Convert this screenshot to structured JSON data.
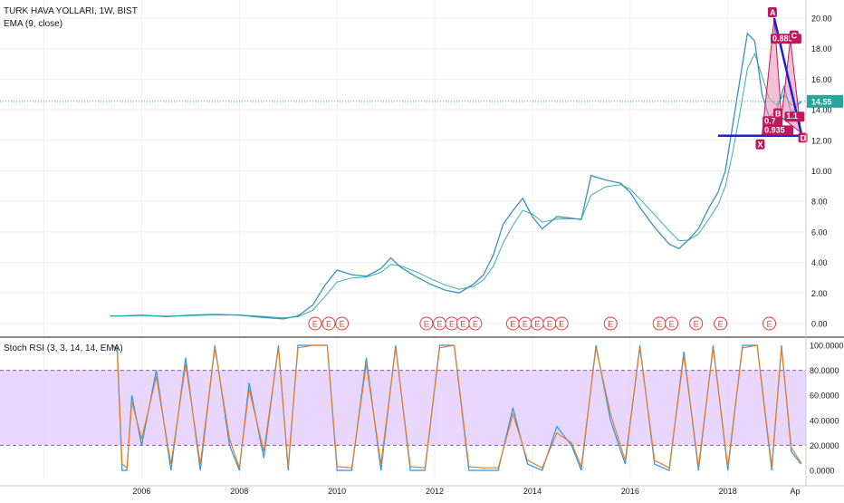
{
  "header": {
    "symbol_line": "TURK HAVA YOLLARI, 1W, BIST",
    "ema_line": "EMA (9, close)",
    "stoch_line": "Stoch RSI (3, 3, 14, 14, EMA)"
  },
  "colors": {
    "price": "#3a8fc7",
    "ema": "#26a69a",
    "stoch_k": "#2196f3",
    "stoch_d": "#e87d22",
    "band": "#e0c4fb",
    "pattern_fill": "#e88fb0",
    "pattern_label": "#c2185b",
    "trendline": "#1e1ed8",
    "price_badge": "#26a69a"
  },
  "price_axis": {
    "ticks": [
      "20.00",
      "18.00",
      "16.00",
      "14.00",
      "12.00",
      "10.00",
      "8.00",
      "6.00",
      "4.00",
      "2.00",
      "0.00"
    ],
    "last_price": "14.55"
  },
  "rsi_axis": {
    "ticks": [
      "100.0000",
      "80.0000",
      "60.0000",
      "40.0000",
      "20.0000",
      "0.0000"
    ]
  },
  "time_axis": {
    "ticks": [
      "2006",
      "2008",
      "2010",
      "2012",
      "2014",
      "2016",
      "2018",
      "Ap"
    ]
  },
  "earnings_marker_label": "E",
  "earnings_markers_years": [
    2009.55,
    2009.83,
    2010.1,
    2011.83,
    2012.1,
    2012.35,
    2012.58,
    2012.83,
    2013.6,
    2013.85,
    2014.1,
    2014.35,
    2014.6,
    2015.6,
    2016.6,
    2016.85,
    2017.35,
    2017.85,
    2018.85
  ],
  "harmonic_pattern": {
    "points": [
      "X",
      "A",
      "B",
      "C",
      "D"
    ],
    "ratios": [
      "0.885",
      "0.7",
      "0.935",
      "1.1"
    ],
    "point_values": {
      "X": {
        "t": 2018.7,
        "price": 12.3
      },
      "A": {
        "t": 2018.95,
        "price": 20.0
      },
      "B": {
        "t": 2019.1,
        "price": 13.5
      },
      "C": {
        "t": 2019.28,
        "price": 18.6
      },
      "D": {
        "t": 2019.5,
        "price": 12.5
      }
    }
  },
  "chart_data": [
    {
      "type": "line",
      "title": "TURK HAVA YOLLARI, 1W, BIST",
      "series": [
        {
          "name": "TURK HAVA YOLLARI",
          "x": [
            2005.35,
            2005.6,
            2006.0,
            2006.5,
            2007.0,
            2007.5,
            2008.0,
            2008.5,
            2008.9,
            2009.2,
            2009.5,
            2009.75,
            2010.0,
            2010.3,
            2010.6,
            2010.9,
            2011.1,
            2011.3,
            2011.6,
            2011.9,
            2012.2,
            2012.5,
            2012.8,
            2013.0,
            2013.2,
            2013.4,
            2013.6,
            2013.8,
            2014.0,
            2014.2,
            2014.5,
            2014.8,
            2015.0,
            2015.2,
            2015.5,
            2015.8,
            2016.0,
            2016.2,
            2016.5,
            2016.8,
            2017.0,
            2017.2,
            2017.4,
            2017.6,
            2017.8,
            2017.95,
            2018.1,
            2018.25,
            2018.4,
            2018.55,
            2018.7,
            2018.85,
            2019.0,
            2019.15,
            2019.3,
            2019.5
          ],
          "values": [
            0.5,
            0.5,
            0.55,
            0.45,
            0.55,
            0.6,
            0.55,
            0.4,
            0.3,
            0.5,
            1.2,
            2.5,
            3.5,
            3.2,
            3.1,
            3.6,
            4.3,
            3.7,
            3.1,
            2.6,
            2.2,
            2.0,
            2.6,
            3.2,
            4.5,
            6.5,
            7.4,
            8.2,
            7.0,
            6.2,
            7.0,
            6.9,
            6.8,
            9.7,
            9.4,
            9.2,
            8.6,
            7.6,
            6.3,
            5.2,
            4.9,
            5.5,
            6.2,
            7.5,
            8.6,
            10.0,
            13.0,
            16.0,
            19.0,
            18.5,
            15.0,
            13.5,
            14.0,
            15.5,
            13.8,
            14.55
          ]
        }
      ],
      "ylim": [
        0,
        20
      ],
      "xlim": [
        2003.1,
        2019.6
      ]
    },
    {
      "type": "line",
      "title": "Stoch RSI (3, 3, 14, 14, EMA)",
      "series": [
        {
          "name": "K",
          "x": [
            2005.4,
            2005.5,
            2005.6,
            2005.7,
            2005.8,
            2006.0,
            2006.3,
            2006.6,
            2006.9,
            2007.2,
            2007.5,
            2007.8,
            2008.0,
            2008.2,
            2008.5,
            2008.8,
            2009.0,
            2009.2,
            2009.5,
            2009.8,
            2010.0,
            2010.3,
            2010.6,
            2010.9,
            2011.2,
            2011.5,
            2011.8,
            2012.1,
            2012.4,
            2012.7,
            2013.0,
            2013.3,
            2013.6,
            2013.9,
            2014.2,
            2014.5,
            2014.8,
            2015.0,
            2015.3,
            2015.6,
            2015.9,
            2016.2,
            2016.5,
            2016.8,
            2017.1,
            2017.4,
            2017.7,
            2018.0,
            2018.3,
            2018.6,
            2018.9,
            2019.1,
            2019.3,
            2019.5
          ],
          "values": [
            100,
            95,
            0,
            0,
            60,
            20,
            80,
            0,
            90,
            0,
            100,
            20,
            0,
            70,
            10,
            100,
            0,
            100,
            100,
            100,
            0,
            0,
            90,
            0,
            100,
            0,
            0,
            100,
            100,
            0,
            0,
            0,
            50,
            5,
            0,
            35,
            20,
            0,
            100,
            40,
            5,
            100,
            5,
            0,
            95,
            0,
            100,
            0,
            100,
            100,
            0,
            100,
            15,
            5
          ]
        },
        {
          "name": "D",
          "x": [
            2005.4,
            2005.5,
            2005.6,
            2005.7,
            2005.8,
            2006.0,
            2006.3,
            2006.6,
            2006.9,
            2007.2,
            2007.5,
            2007.8,
            2008.0,
            2008.2,
            2008.5,
            2008.8,
            2009.0,
            2009.2,
            2009.5,
            2009.8,
            2010.0,
            2010.3,
            2010.6,
            2010.9,
            2011.2,
            2011.5,
            2011.8,
            2012.1,
            2012.4,
            2012.7,
            2013.0,
            2013.3,
            2013.6,
            2013.9,
            2014.2,
            2014.5,
            2014.8,
            2015.0,
            2015.3,
            2015.6,
            2015.9,
            2016.2,
            2016.5,
            2016.8,
            2017.1,
            2017.4,
            2017.7,
            2018.0,
            2018.3,
            2018.6,
            2018.9,
            2019.1,
            2019.3,
            2019.5
          ],
          "values": [
            100,
            98,
            5,
            2,
            55,
            25,
            75,
            5,
            85,
            5,
            98,
            25,
            2,
            65,
            15,
            98,
            3,
            98,
            100,
            100,
            3,
            2,
            85,
            5,
            98,
            3,
            2,
            98,
            100,
            3,
            2,
            2,
            45,
            8,
            2,
            30,
            22,
            3,
            98,
            45,
            8,
            98,
            8,
            2,
            92,
            3,
            98,
            3,
            98,
            100,
            3,
            98,
            18,
            6
          ]
        }
      ],
      "ylim": [
        0,
        100
      ],
      "xlim": [
        2003.1,
        2019.6
      ],
      "bands": [
        20,
        80
      ]
    }
  ]
}
